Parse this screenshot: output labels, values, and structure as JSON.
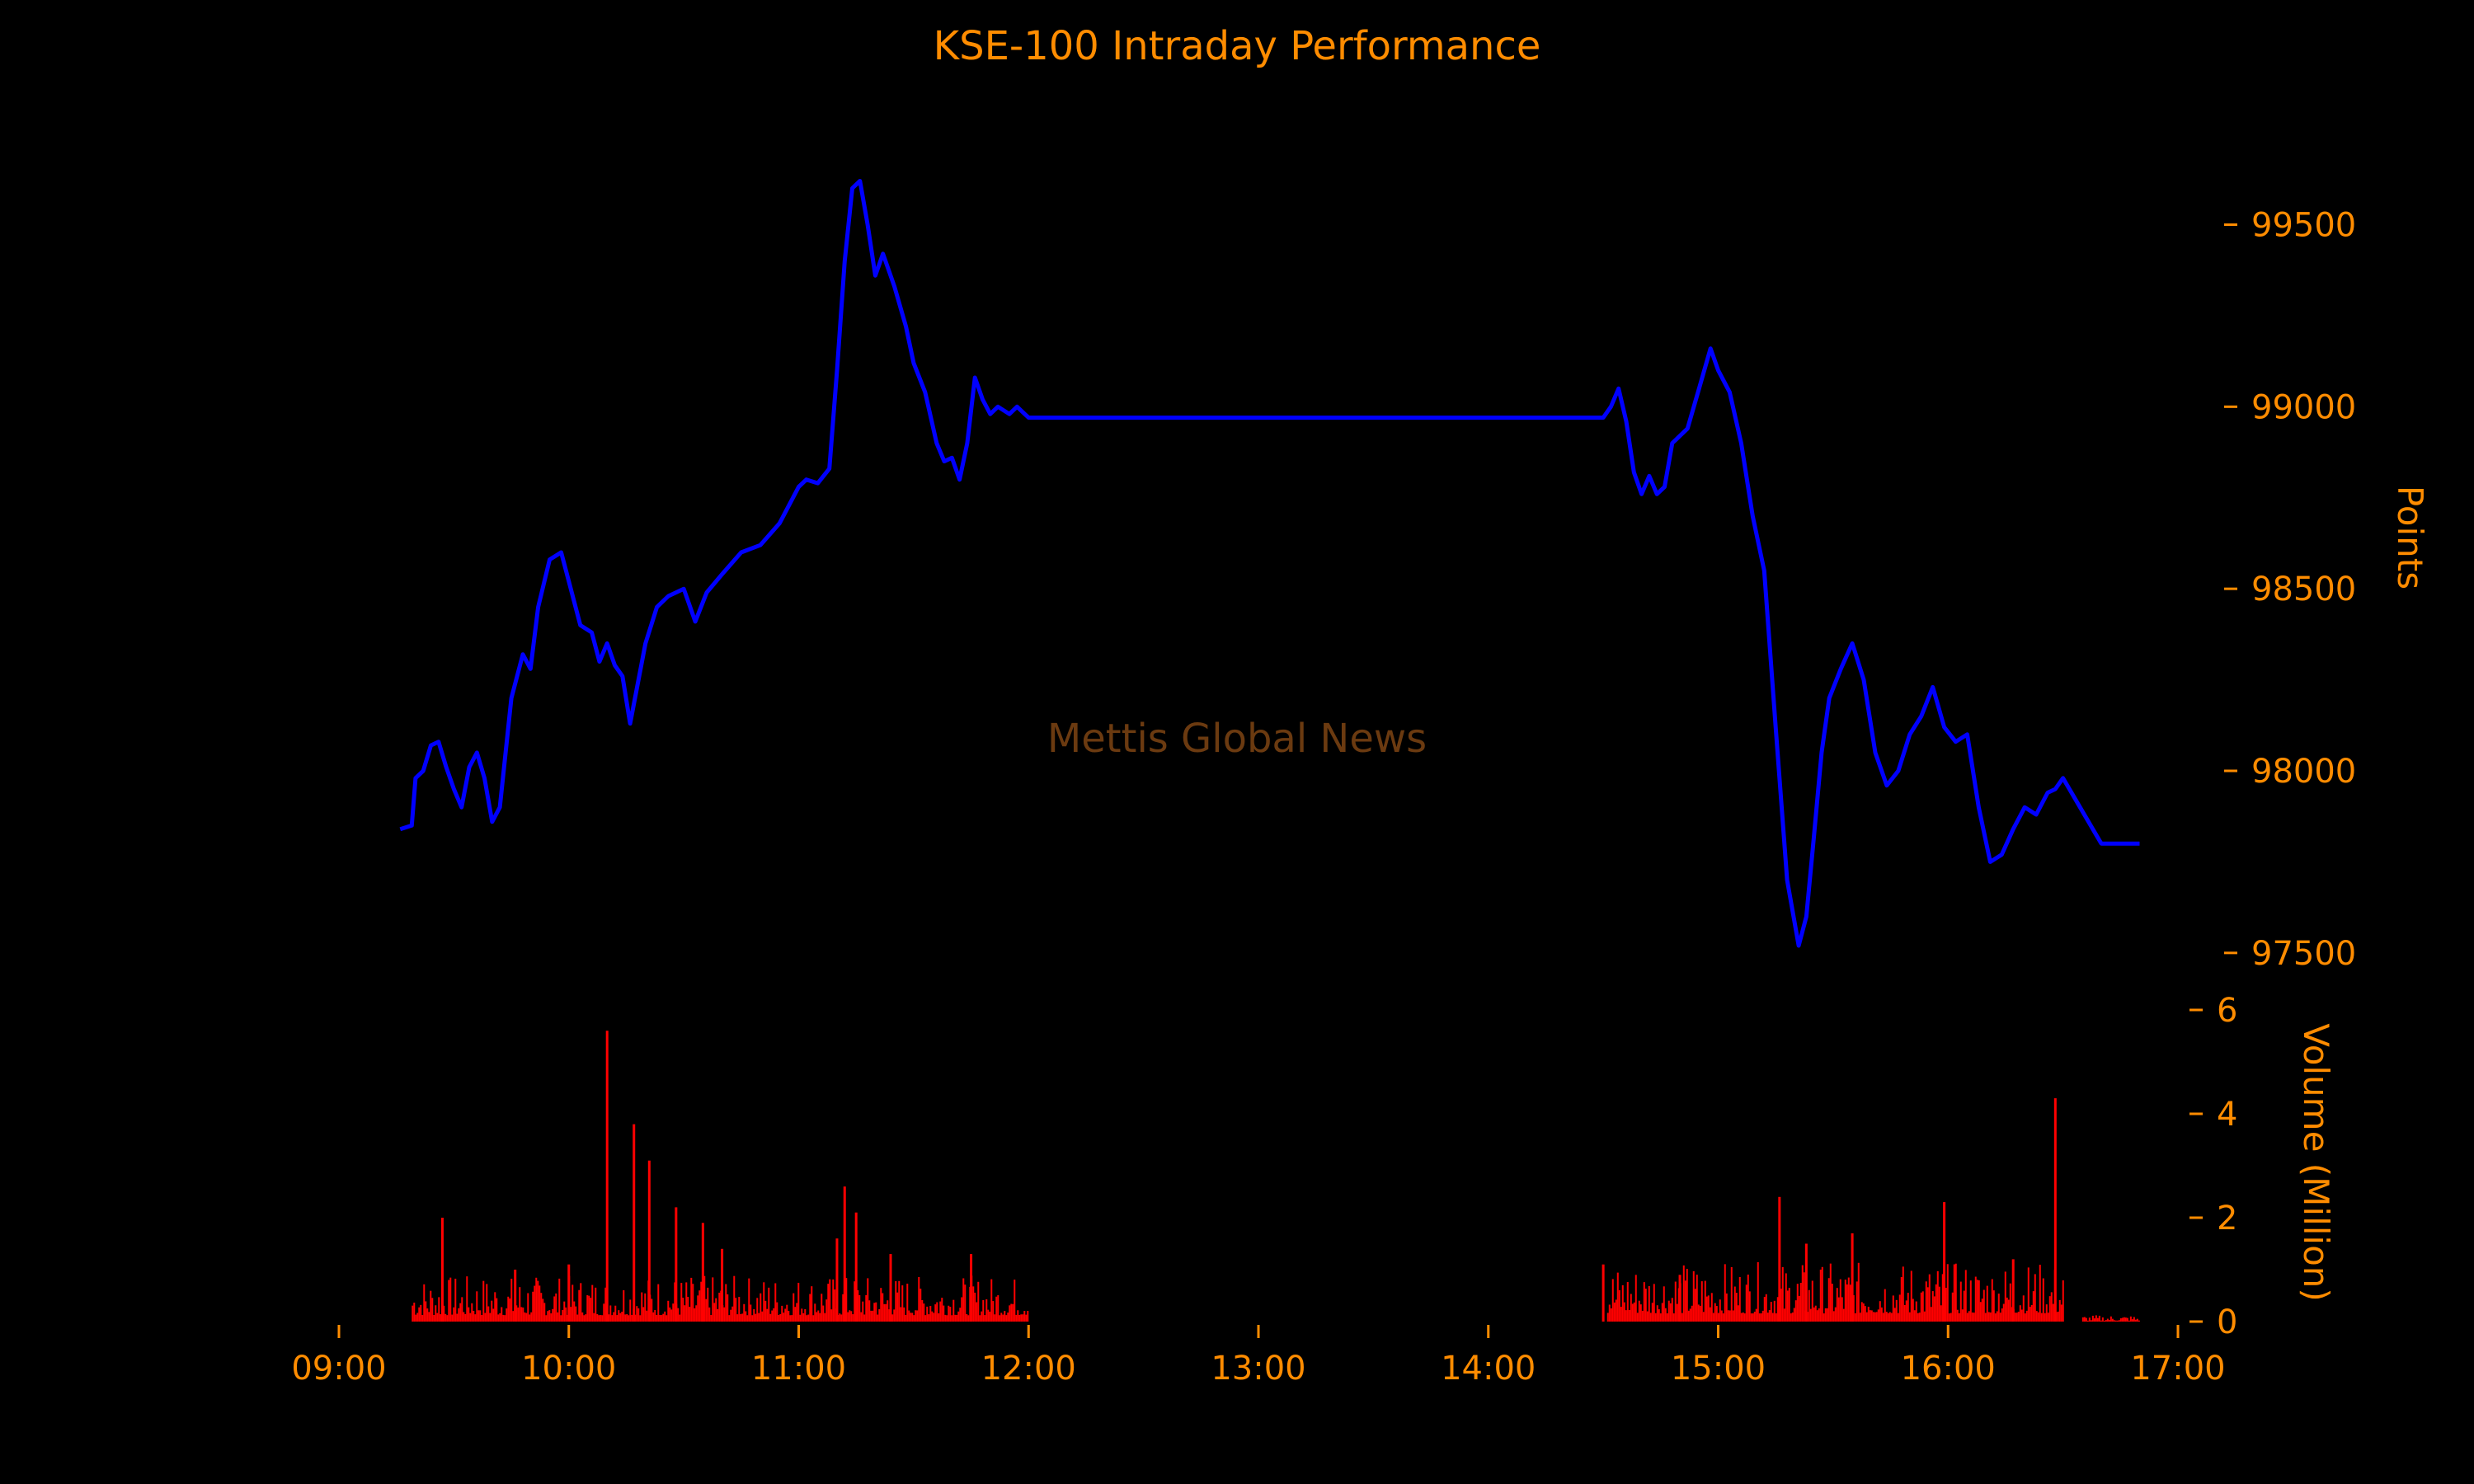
{
  "chart_data": {
    "type": "line",
    "title": "KSE-100 Intraday Performance",
    "watermark": "Mettis Global News",
    "colors": {
      "background": "#000000",
      "text": "#ff8c00",
      "price_line": "#0000ff",
      "volume_bars": "#ff0000",
      "watermark": "#6b3a10"
    },
    "x_axis": {
      "type": "time",
      "range": [
        "09:00",
        "17:00"
      ],
      "tick_labels": [
        "09:00",
        "10:00",
        "11:00",
        "12:00",
        "13:00",
        "14:00",
        "15:00",
        "16:00",
        "17:00"
      ]
    },
    "price_panel": {
      "ylabel": "Points",
      "ylim": [
        97400,
        99800
      ],
      "yticks": [
        97500,
        98000,
        98500,
        99000,
        99500
      ],
      "tick_labels": [
        "97500",
        "98000",
        "98500",
        "99000",
        "99500"
      ],
      "series": [
        {
          "x": [
            "09:16",
            "09:19",
            "09:20",
            "09:22",
            "09:24",
            "09:26",
            "09:28",
            "09:30",
            "09:32",
            "09:34",
            "09:36",
            "09:38",
            "09:40",
            "09:42",
            "09:45",
            "09:48",
            "09:50",
            "09:52",
            "09:55",
            "09:58",
            "10:00",
            "10:03",
            "10:06",
            "10:08",
            "10:10",
            "10:12",
            "10:14",
            "10:16",
            "10:20",
            "10:23",
            "10:26",
            "10:30",
            "10:33",
            "10:36",
            "10:40",
            "10:45",
            "10:50",
            "10:55",
            "11:00",
            "11:02",
            "11:05",
            "11:08",
            "11:10",
            "11:12",
            "11:14",
            "11:16",
            "11:18",
            "11:20",
            "11:22",
            "11:25",
            "11:28",
            "11:30",
            "11:33",
            "11:36",
            "11:38",
            "11:40",
            "11:42",
            "11:44",
            "11:46",
            "11:48",
            "11:50",
            "11:52",
            "11:55",
            "11:57",
            "11:59",
            "12:00",
            "14:30",
            "14:32",
            "14:34",
            "14:36",
            "14:38",
            "14:40",
            "14:42",
            "14:44",
            "14:46",
            "14:48",
            "14:50",
            "14:52",
            "14:55",
            "14:58",
            "15:00",
            "15:03",
            "15:06",
            "15:09",
            "15:12",
            "15:15",
            "15:18",
            "15:21",
            "15:23",
            "15:25",
            "15:27",
            "15:29",
            "15:32",
            "15:35",
            "15:38",
            "15:41",
            "15:44",
            "15:47",
            "15:50",
            "15:53",
            "15:56",
            "15:59",
            "16:02",
            "16:05",
            "16:08",
            "16:11",
            "16:14",
            "16:17",
            "16:20",
            "16:23",
            "16:26",
            "16:28",
            "16:30",
            "16:40",
            "16:50"
          ],
          "values": [
            97840,
            97850,
            97980,
            98000,
            98070,
            98080,
            98010,
            97950,
            97900,
            98010,
            98050,
            97980,
            97860,
            97900,
            98200,
            98320,
            98280,
            98450,
            98580,
            98600,
            98520,
            98400,
            98380,
            98300,
            98350,
            98290,
            98260,
            98130,
            98350,
            98450,
            98480,
            98500,
            98410,
            98490,
            98540,
            98600,
            98620,
            98680,
            98780,
            98800,
            98790,
            98830,
            99100,
            99400,
            99600,
            99620,
            99500,
            99360,
            99420,
            99330,
            99220,
            99120,
            99040,
            98900,
            98850,
            98860,
            98800,
            98900,
            99080,
            99020,
            98980,
            99000,
            98980,
            99000,
            98980,
            98970,
            98970,
            99000,
            99050,
            98960,
            98820,
            98760,
            98810,
            98760,
            98780,
            98900,
            98920,
            98940,
            99050,
            99160,
            99100,
            99040,
            98900,
            98700,
            98550,
            98120,
            97700,
            97520,
            97600,
            97820,
            98050,
            98200,
            98280,
            98350,
            98250,
            98050,
            97960,
            98000,
            98100,
            98150,
            98230,
            98120,
            98080,
            98100,
            97900,
            97750,
            97770,
            97840,
            97900,
            97880,
            97940,
            97950,
            97980,
            97800,
            97800
          ]
        }
      ]
    },
    "volume_panel": {
      "ylabel": "Volume (Million)",
      "ylim": [
        0,
        6
      ],
      "yticks": [
        0,
        2,
        4,
        6
      ],
      "tick_labels": [
        "0",
        "2",
        "4",
        "6"
      ],
      "spikes": [
        {
          "x": "09:27",
          "value": 2.0
        },
        {
          "x": "09:46",
          "value": 1.0
        },
        {
          "x": "10:00",
          "value": 1.1
        },
        {
          "x": "10:10",
          "value": 5.6
        },
        {
          "x": "10:17",
          "value": 3.8
        },
        {
          "x": "10:21",
          "value": 3.1
        },
        {
          "x": "10:28",
          "value": 2.2
        },
        {
          "x": "10:35",
          "value": 1.9
        },
        {
          "x": "10:40",
          "value": 1.4
        },
        {
          "x": "11:10",
          "value": 1.6
        },
        {
          "x": "11:12",
          "value": 2.6
        },
        {
          "x": "11:15",
          "value": 2.1
        },
        {
          "x": "11:24",
          "value": 1.3
        },
        {
          "x": "11:45",
          "value": 1.3
        },
        {
          "x": "14:30",
          "value": 1.1
        },
        {
          "x": "14:50",
          "value": 0.9
        },
        {
          "x": "15:16",
          "value": 2.4
        },
        {
          "x": "15:23",
          "value": 1.5
        },
        {
          "x": "15:35",
          "value": 1.7
        },
        {
          "x": "15:59",
          "value": 2.3
        },
        {
          "x": "16:17",
          "value": 1.2
        },
        {
          "x": "16:28",
          "value": 4.3
        }
      ],
      "segments": [
        {
          "start": "09:19",
          "end": "12:00",
          "base": 0.35
        },
        {
          "start": "14:31",
          "end": "16:30",
          "base": 0.45
        },
        {
          "start": "16:35",
          "end": "16:50",
          "base": 0.05
        }
      ]
    }
  }
}
